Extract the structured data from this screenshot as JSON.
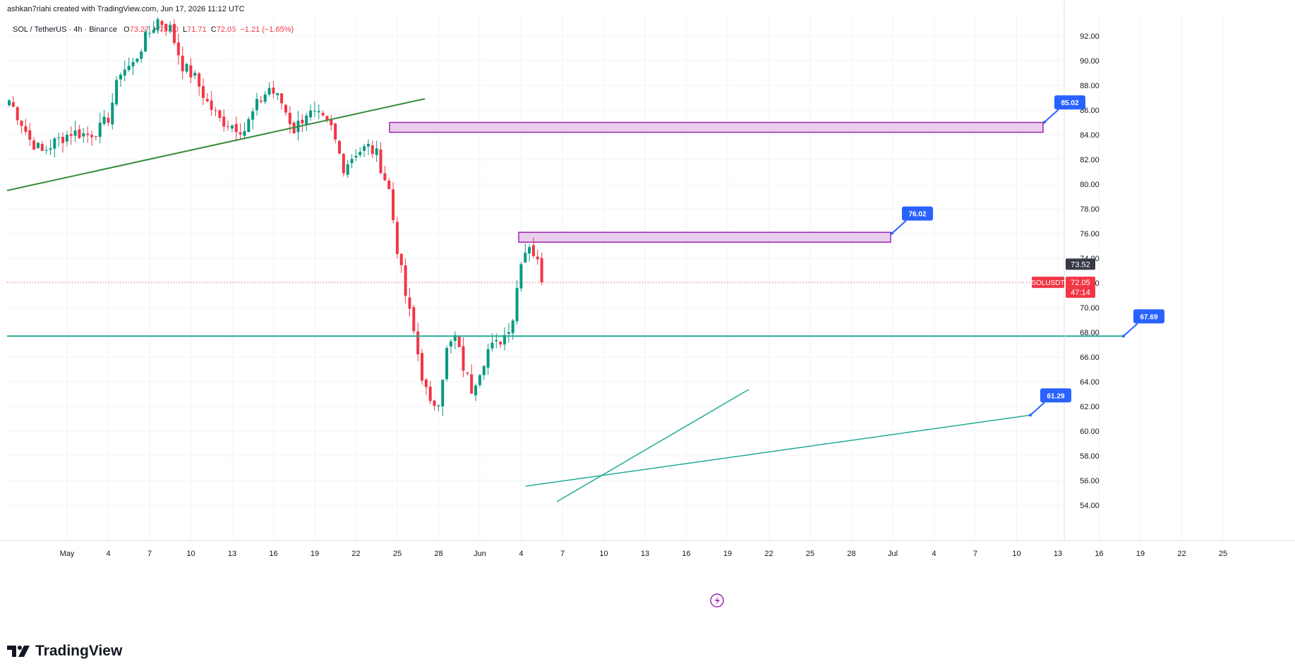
{
  "caption": "ashkan7riahi created with TradingView.com, Jun 17, 2026 11:12 UTC",
  "header": {
    "symbol": "SOL / TetherUS · 4h · Binance",
    "open_label": "O",
    "open": "73.27",
    "high_label": "H",
    "high": "73.90",
    "low_label": "L",
    "low": "71.71",
    "close_label": "C",
    "close": "72.05",
    "change": "−1.21 (−1.65%)"
  },
  "brand": {
    "name": "TradingView"
  },
  "colors": {
    "up": "#089981",
    "down": "#f23645",
    "grid": "#f0f3fa",
    "zone_fill": "#e1bee7",
    "zone_border": "#9c27b0",
    "trend_green": "#388e3c",
    "level_teal": "#22ab94",
    "badge_blue": "#2962ff",
    "price_label_bg": "#f23645",
    "last_label_bg": "#363a45"
  },
  "chart_data": {
    "type": "candlestick",
    "symbol": "SOLUSDT",
    "timeframe": "4h",
    "x_tick_labels": [
      "May",
      "4",
      "7",
      "10",
      "13",
      "16",
      "19",
      "22",
      "25",
      "28",
      "Jun",
      "4",
      "7",
      "10",
      "13",
      "16",
      "19",
      "22",
      "25",
      "28",
      "Jul",
      "4",
      "7",
      "10",
      "13",
      "16",
      "19",
      "22",
      "25"
    ],
    "y_tick_labels": [
      "92.00",
      "90.00",
      "88.00",
      "86.00",
      "84.00",
      "82.00",
      "80.00",
      "78.00",
      "76.00",
      "74.00",
      "72.00",
      "70.00",
      "68.00",
      "66.00",
      "64.00",
      "62.00",
      "60.00",
      "58.00",
      "56.00",
      "54.00"
    ],
    "ylim": [
      53,
      93.5
    ],
    "price_path": [
      [
        0,
        86.8
      ],
      [
        3,
        85.0
      ],
      [
        5,
        83.6
      ],
      [
        8,
        82.6
      ],
      [
        11,
        83.4
      ],
      [
        15,
        84.2
      ],
      [
        19,
        84.0
      ],
      [
        22,
        84.5
      ],
      [
        24,
        85.4
      ],
      [
        27,
        89.2
      ],
      [
        30,
        89.7
      ],
      [
        33,
        91.8
      ],
      [
        36,
        93.3
      ],
      [
        39,
        92.6
      ],
      [
        42,
        89.6
      ],
      [
        45,
        88.6
      ],
      [
        48,
        86.6
      ],
      [
        51,
        85.2
      ],
      [
        54,
        84.8
      ],
      [
        57,
        84.4
      ],
      [
        60,
        86.4
      ],
      [
        63,
        87.8
      ],
      [
        66,
        86.6
      ],
      [
        69,
        84.4
      ],
      [
        72,
        85.8
      ],
      [
        75,
        85.4
      ],
      [
        78,
        84.5
      ],
      [
        81,
        81.4
      ],
      [
        84,
        82.6
      ],
      [
        87,
        83.0
      ],
      [
        89,
        82.4
      ],
      [
        92,
        79.5
      ],
      [
        94,
        74.8
      ],
      [
        96,
        71.0
      ],
      [
        98,
        68.0
      ],
      [
        100,
        64.5
      ],
      [
        102,
        62.0
      ],
      [
        104,
        62.6
      ],
      [
        106,
        66.5
      ],
      [
        108,
        67.6
      ],
      [
        110,
        65.2
      ],
      [
        112,
        63.4
      ],
      [
        114,
        65.0
      ],
      [
        116,
        66.6
      ],
      [
        118,
        67.0
      ],
      [
        120,
        67.8
      ],
      [
        122,
        69.2
      ],
      [
        124,
        74.0
      ],
      [
        126,
        75.2
      ],
      [
        128,
        73.6
      ],
      [
        129,
        72.05
      ]
    ],
    "last_price": "72.05",
    "countdown": "47:14",
    "secondary_price": "73.52",
    "zones": [
      {
        "top": 85.0,
        "bottom": 84.2
      },
      {
        "top": 76.1,
        "bottom": 75.3
      }
    ],
    "levels": [
      67.69,
      61.29
    ],
    "price_badges": [
      "85.02",
      "76.02",
      "67.69",
      "61.29"
    ]
  }
}
